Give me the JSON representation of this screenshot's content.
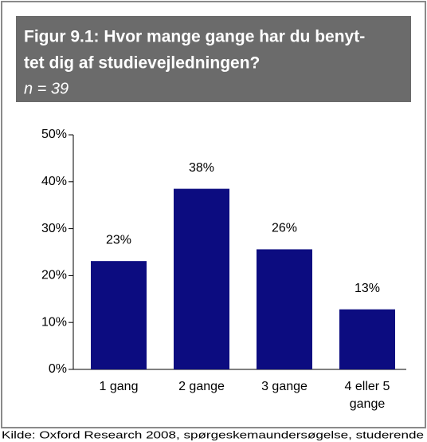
{
  "chart_data": {
    "type": "bar",
    "title_lines": [
      "Figur 9.1: Hvor mange gange har du benyt-",
      "tet dig af studievejledningen?"
    ],
    "subtitle": "n = 39",
    "categories": [
      "1 gang",
      "2 gange",
      "3 gange",
      "4 eller 5 gange"
    ],
    "values": [
      23.1,
      38.5,
      25.6,
      12.8
    ],
    "value_labels": [
      "23%",
      "38%",
      "26%",
      "13%"
    ],
    "color": "#0c0c80",
    "ylim": [
      0,
      50
    ],
    "yticks": [
      {
        "value": 0,
        "label": "0%"
      },
      {
        "value": 10,
        "label": "10%"
      },
      {
        "value": 20,
        "label": "20%"
      },
      {
        "value": 30,
        "label": "30%"
      },
      {
        "value": 40,
        "label": "40%"
      },
      {
        "value": 50,
        "label": "50%"
      }
    ],
    "source": "Kilde: Oxford Research 2008, spørgeskemaundersøgelse, studerende"
  }
}
